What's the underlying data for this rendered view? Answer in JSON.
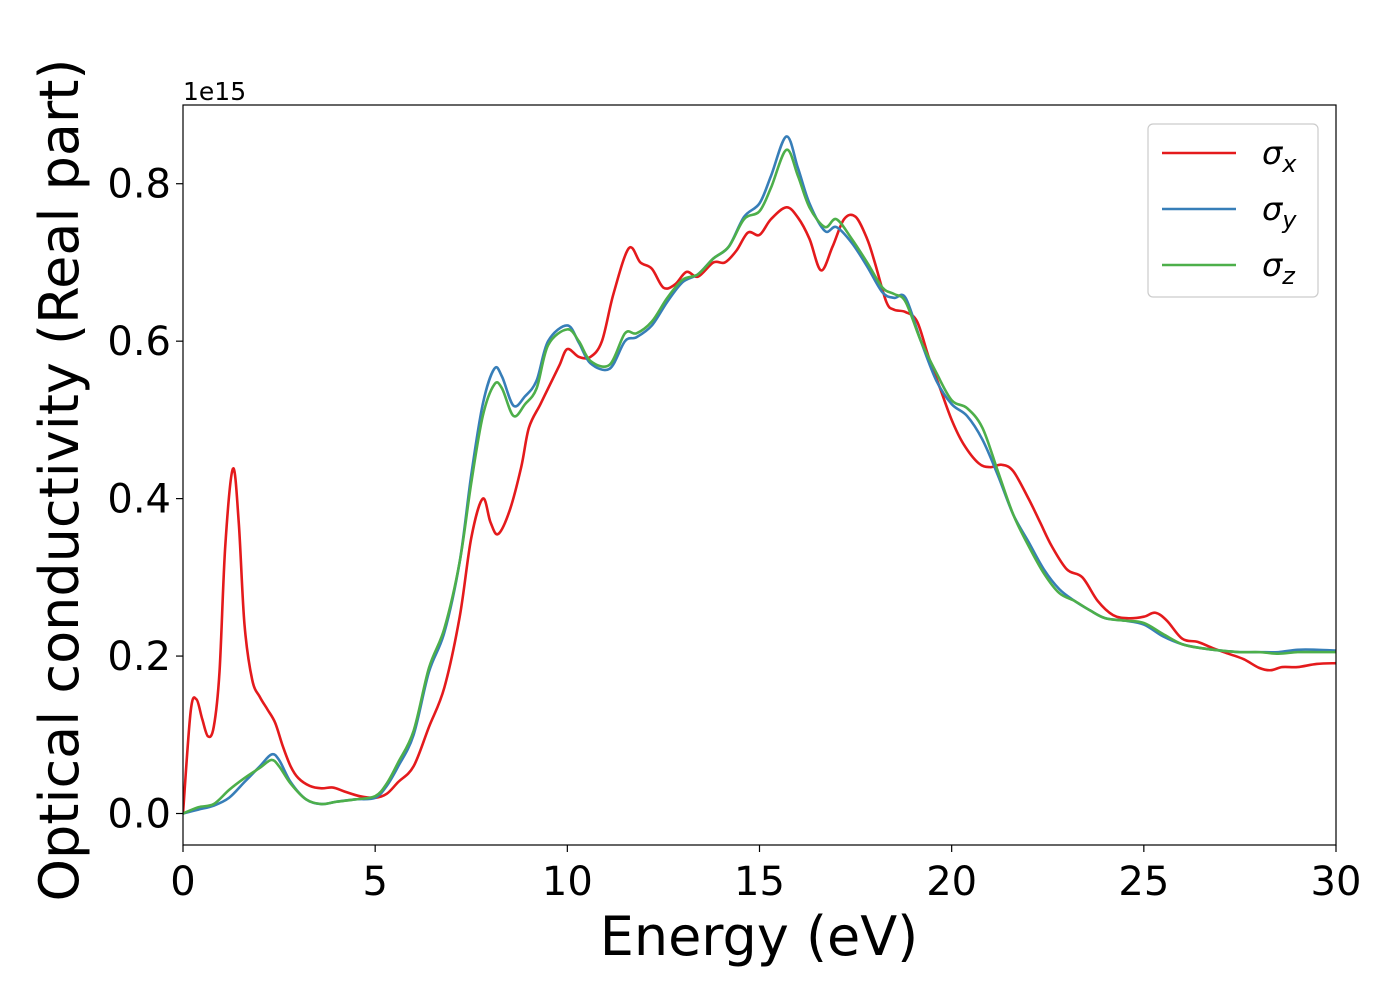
{
  "chart_data": {
    "type": "line",
    "xlabel": "Energy (eV)",
    "ylabel": "Optical conductivity (Real part)",
    "y_offset_label": "1e15",
    "xlim": [
      0,
      30
    ],
    "ylim": [
      -0.04,
      0.9
    ],
    "x_ticks": [
      0,
      5,
      10,
      15,
      20,
      25,
      30
    ],
    "x_tick_labels": [
      "0",
      "5",
      "10",
      "15",
      "20",
      "25",
      "30"
    ],
    "y_ticks": [
      0.0,
      0.2,
      0.4,
      0.6,
      0.8
    ],
    "y_tick_labels": [
      "0.0",
      "0.2",
      "0.4",
      "0.6",
      "0.8"
    ],
    "grid": false,
    "legend_position": "top-right",
    "series": [
      {
        "name": "σx",
        "legend_symbol": "σ",
        "legend_subscript": "x",
        "color": "#e41a1c",
        "points": [
          [
            0,
            0.0
          ],
          [
            0.2,
            0.13
          ],
          [
            0.35,
            0.145
          ],
          [
            0.5,
            0.12
          ],
          [
            0.65,
            0.098
          ],
          [
            0.8,
            0.11
          ],
          [
            0.95,
            0.18
          ],
          [
            1.1,
            0.34
          ],
          [
            1.3,
            0.438
          ],
          [
            1.45,
            0.37
          ],
          [
            1.6,
            0.24
          ],
          [
            1.8,
            0.17
          ],
          [
            2.0,
            0.148
          ],
          [
            2.2,
            0.132
          ],
          [
            2.4,
            0.115
          ],
          [
            2.6,
            0.085
          ],
          [
            2.8,
            0.06
          ],
          [
            3.0,
            0.045
          ],
          [
            3.3,
            0.035
          ],
          [
            3.6,
            0.032
          ],
          [
            3.9,
            0.033
          ],
          [
            4.2,
            0.028
          ],
          [
            4.6,
            0.022
          ],
          [
            5.0,
            0.02
          ],
          [
            5.3,
            0.025
          ],
          [
            5.6,
            0.04
          ],
          [
            6.0,
            0.06
          ],
          [
            6.4,
            0.11
          ],
          [
            6.8,
            0.16
          ],
          [
            7.2,
            0.25
          ],
          [
            7.5,
            0.35
          ],
          [
            7.8,
            0.4
          ],
          [
            8.0,
            0.37
          ],
          [
            8.2,
            0.355
          ],
          [
            8.5,
            0.385
          ],
          [
            8.8,
            0.44
          ],
          [
            9.0,
            0.49
          ],
          [
            9.3,
            0.52
          ],
          [
            9.6,
            0.55
          ],
          [
            9.8,
            0.57
          ],
          [
            10.0,
            0.59
          ],
          [
            10.3,
            0.58
          ],
          [
            10.6,
            0.58
          ],
          [
            10.9,
            0.6
          ],
          [
            11.2,
            0.66
          ],
          [
            11.6,
            0.718
          ],
          [
            11.9,
            0.7
          ],
          [
            12.2,
            0.692
          ],
          [
            12.5,
            0.668
          ],
          [
            12.8,
            0.672
          ],
          [
            13.1,
            0.688
          ],
          [
            13.4,
            0.682
          ],
          [
            13.8,
            0.7
          ],
          [
            14.1,
            0.7
          ],
          [
            14.4,
            0.715
          ],
          [
            14.7,
            0.738
          ],
          [
            15.0,
            0.735
          ],
          [
            15.3,
            0.755
          ],
          [
            15.7,
            0.77
          ],
          [
            16.0,
            0.757
          ],
          [
            16.3,
            0.73
          ],
          [
            16.6,
            0.69
          ],
          [
            16.9,
            0.72
          ],
          [
            17.2,
            0.755
          ],
          [
            17.5,
            0.758
          ],
          [
            17.8,
            0.73
          ],
          [
            18.0,
            0.7
          ],
          [
            18.3,
            0.65
          ],
          [
            18.5,
            0.64
          ],
          [
            18.8,
            0.637
          ],
          [
            19.1,
            0.625
          ],
          [
            19.4,
            0.58
          ],
          [
            19.7,
            0.54
          ],
          [
            20.0,
            0.5
          ],
          [
            20.3,
            0.47
          ],
          [
            20.7,
            0.445
          ],
          [
            21.0,
            0.44
          ],
          [
            21.3,
            0.443
          ],
          [
            21.6,
            0.435
          ],
          [
            22.0,
            0.4
          ],
          [
            22.3,
            0.37
          ],
          [
            22.6,
            0.34
          ],
          [
            23.0,
            0.31
          ],
          [
            23.4,
            0.3
          ],
          [
            23.8,
            0.27
          ],
          [
            24.2,
            0.252
          ],
          [
            24.6,
            0.248
          ],
          [
            25.0,
            0.25
          ],
          [
            25.3,
            0.255
          ],
          [
            25.6,
            0.245
          ],
          [
            26.0,
            0.222
          ],
          [
            26.4,
            0.218
          ],
          [
            26.8,
            0.21
          ],
          [
            27.2,
            0.203
          ],
          [
            27.6,
            0.196
          ],
          [
            28.0,
            0.185
          ],
          [
            28.3,
            0.182
          ],
          [
            28.6,
            0.186
          ],
          [
            29.0,
            0.186
          ],
          [
            29.5,
            0.19
          ],
          [
            30.0,
            0.191
          ]
        ]
      },
      {
        "name": "σy",
        "legend_symbol": "σ",
        "legend_subscript": "y",
        "color": "#377eb8",
        "points": [
          [
            0,
            0.0
          ],
          [
            0.4,
            0.005
          ],
          [
            0.8,
            0.01
          ],
          [
            1.2,
            0.02
          ],
          [
            1.6,
            0.04
          ],
          [
            2.0,
            0.06
          ],
          [
            2.3,
            0.075
          ],
          [
            2.5,
            0.068
          ],
          [
            2.8,
            0.04
          ],
          [
            3.2,
            0.018
          ],
          [
            3.6,
            0.012
          ],
          [
            4.0,
            0.015
          ],
          [
            4.5,
            0.018
          ],
          [
            5.0,
            0.02
          ],
          [
            5.3,
            0.035
          ],
          [
            5.6,
            0.06
          ],
          [
            6.0,
            0.1
          ],
          [
            6.4,
            0.18
          ],
          [
            6.8,
            0.23
          ],
          [
            7.2,
            0.32
          ],
          [
            7.5,
            0.43
          ],
          [
            7.8,
            0.52
          ],
          [
            8.1,
            0.565
          ],
          [
            8.3,
            0.555
          ],
          [
            8.6,
            0.518
          ],
          [
            8.9,
            0.53
          ],
          [
            9.2,
            0.55
          ],
          [
            9.5,
            0.6
          ],
          [
            10.0,
            0.62
          ],
          [
            10.3,
            0.598
          ],
          [
            10.6,
            0.572
          ],
          [
            11.1,
            0.565
          ],
          [
            11.5,
            0.6
          ],
          [
            11.8,
            0.605
          ],
          [
            12.2,
            0.62
          ],
          [
            12.6,
            0.65
          ],
          [
            13.0,
            0.675
          ],
          [
            13.4,
            0.685
          ],
          [
            13.8,
            0.705
          ],
          [
            14.2,
            0.72
          ],
          [
            14.6,
            0.758
          ],
          [
            15.0,
            0.775
          ],
          [
            15.3,
            0.81
          ],
          [
            15.7,
            0.86
          ],
          [
            16.0,
            0.82
          ],
          [
            16.3,
            0.775
          ],
          [
            16.7,
            0.74
          ],
          [
            17.0,
            0.745
          ],
          [
            17.4,
            0.725
          ],
          [
            17.8,
            0.695
          ],
          [
            18.2,
            0.662
          ],
          [
            18.5,
            0.655
          ],
          [
            18.8,
            0.655
          ],
          [
            19.2,
            0.6
          ],
          [
            19.6,
            0.55
          ],
          [
            20.0,
            0.52
          ],
          [
            20.4,
            0.505
          ],
          [
            20.8,
            0.475
          ],
          [
            21.2,
            0.43
          ],
          [
            21.6,
            0.38
          ],
          [
            22.0,
            0.345
          ],
          [
            22.4,
            0.31
          ],
          [
            22.8,
            0.285
          ],
          [
            23.2,
            0.27
          ],
          [
            23.6,
            0.258
          ],
          [
            24.0,
            0.248
          ],
          [
            24.5,
            0.245
          ],
          [
            25.0,
            0.24
          ],
          [
            25.5,
            0.225
          ],
          [
            26.0,
            0.215
          ],
          [
            26.5,
            0.21
          ],
          [
            27.0,
            0.207
          ],
          [
            27.5,
            0.205
          ],
          [
            28.0,
            0.205
          ],
          [
            28.5,
            0.205
          ],
          [
            29.0,
            0.208
          ],
          [
            29.5,
            0.208
          ],
          [
            30.0,
            0.207
          ]
        ]
      },
      {
        "name": "σz",
        "legend_symbol": "σ",
        "legend_subscript": "z",
        "color": "#4daf4a",
        "points": [
          [
            0,
            0.0
          ],
          [
            0.4,
            0.008
          ],
          [
            0.8,
            0.012
          ],
          [
            1.2,
            0.03
          ],
          [
            1.6,
            0.045
          ],
          [
            2.0,
            0.058
          ],
          [
            2.3,
            0.068
          ],
          [
            2.5,
            0.06
          ],
          [
            2.8,
            0.038
          ],
          [
            3.2,
            0.018
          ],
          [
            3.6,
            0.012
          ],
          [
            4.0,
            0.015
          ],
          [
            4.5,
            0.018
          ],
          [
            5.0,
            0.022
          ],
          [
            5.3,
            0.038
          ],
          [
            5.6,
            0.065
          ],
          [
            6.0,
            0.105
          ],
          [
            6.4,
            0.185
          ],
          [
            6.8,
            0.235
          ],
          [
            7.2,
            0.32
          ],
          [
            7.5,
            0.42
          ],
          [
            7.8,
            0.505
          ],
          [
            8.1,
            0.545
          ],
          [
            8.3,
            0.54
          ],
          [
            8.6,
            0.505
          ],
          [
            8.9,
            0.52
          ],
          [
            9.2,
            0.54
          ],
          [
            9.5,
            0.595
          ],
          [
            10.0,
            0.615
          ],
          [
            10.3,
            0.6
          ],
          [
            10.6,
            0.575
          ],
          [
            11.1,
            0.57
          ],
          [
            11.5,
            0.61
          ],
          [
            11.8,
            0.61
          ],
          [
            12.2,
            0.625
          ],
          [
            12.6,
            0.655
          ],
          [
            13.0,
            0.678
          ],
          [
            13.4,
            0.685
          ],
          [
            13.8,
            0.705
          ],
          [
            14.2,
            0.72
          ],
          [
            14.6,
            0.755
          ],
          [
            15.0,
            0.765
          ],
          [
            15.3,
            0.795
          ],
          [
            15.7,
            0.843
          ],
          [
            16.0,
            0.81
          ],
          [
            16.3,
            0.77
          ],
          [
            16.7,
            0.745
          ],
          [
            17.0,
            0.755
          ],
          [
            17.4,
            0.73
          ],
          [
            17.8,
            0.7
          ],
          [
            18.2,
            0.668
          ],
          [
            18.5,
            0.66
          ],
          [
            18.8,
            0.65
          ],
          [
            19.2,
            0.6
          ],
          [
            19.6,
            0.56
          ],
          [
            20.0,
            0.525
          ],
          [
            20.4,
            0.515
          ],
          [
            20.8,
            0.49
          ],
          [
            21.2,
            0.435
          ],
          [
            21.6,
            0.38
          ],
          [
            22.0,
            0.34
          ],
          [
            22.4,
            0.305
          ],
          [
            22.8,
            0.28
          ],
          [
            23.2,
            0.27
          ],
          [
            23.6,
            0.258
          ],
          [
            24.0,
            0.248
          ],
          [
            24.5,
            0.245
          ],
          [
            25.0,
            0.242
          ],
          [
            25.5,
            0.228
          ],
          [
            26.0,
            0.215
          ],
          [
            26.5,
            0.21
          ],
          [
            27.0,
            0.207
          ],
          [
            27.5,
            0.205
          ],
          [
            28.0,
            0.205
          ],
          [
            28.5,
            0.203
          ],
          [
            29.0,
            0.205
          ],
          [
            29.5,
            0.205
          ],
          [
            30.0,
            0.205
          ]
        ]
      }
    ]
  }
}
